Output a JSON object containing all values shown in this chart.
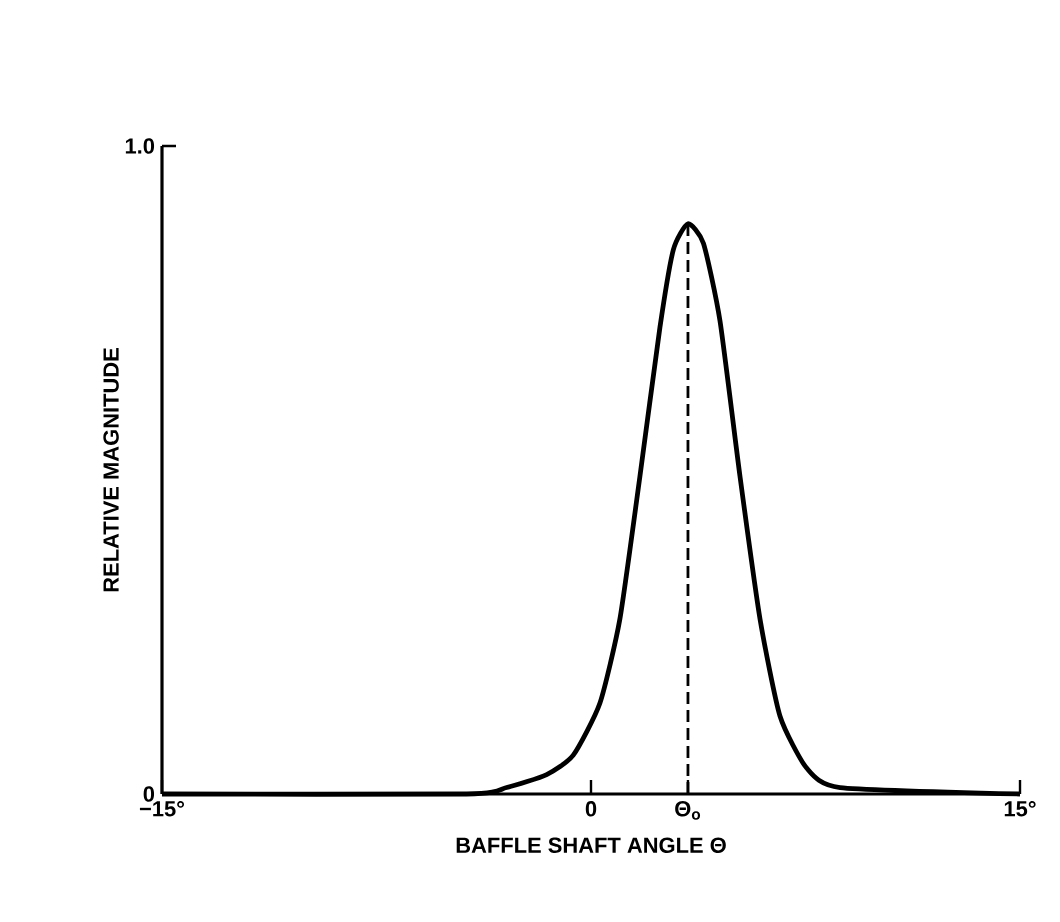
{
  "chart_data": {
    "type": "line",
    "xlabel": "BAFFLE SHAFT ANGLE Θ",
    "ylabel": "RELATIVE MAGNITUDE",
    "x": [
      -15,
      -4.35,
      -2.95,
      -1.55,
      -0.62,
      0.31,
      1.01,
      1.71,
      2.41,
      2.88,
      3.39,
      3.93,
      4.51,
      5.21,
      5.91,
      6.61,
      7.54,
      8.71,
      15
    ],
    "series": [
      {
        "color": "#000000",
        "values": [
          0,
          0,
          0.01,
          0.03,
          0.06,
          0.14,
          0.27,
          0.49,
          0.72,
          0.84,
          0.88,
          0.85,
          0.73,
          0.49,
          0.27,
          0.12,
          0.04,
          0.01,
          0
        ]
      }
    ],
    "xlim": [
      -15,
      15
    ],
    "xticks": [
      {
        "value": -15,
        "label": "−15°"
      },
      {
        "value": 0,
        "label": "0"
      },
      {
        "value": 3.39,
        "label": "Θ$_{o}$"
      },
      {
        "value": 15,
        "label": "15°"
      }
    ],
    "ylim": [
      0,
      1
    ],
    "yticks": [
      0,
      {
        "value": 1,
        "label": "1.0"
      }
    ],
    "ref_lines": [
      {
        "axis": "x",
        "value": 3.39,
        "line_style": "dashed"
      }
    ],
    "grid": false,
    "marker": "none",
    "line_style": "solid"
  }
}
